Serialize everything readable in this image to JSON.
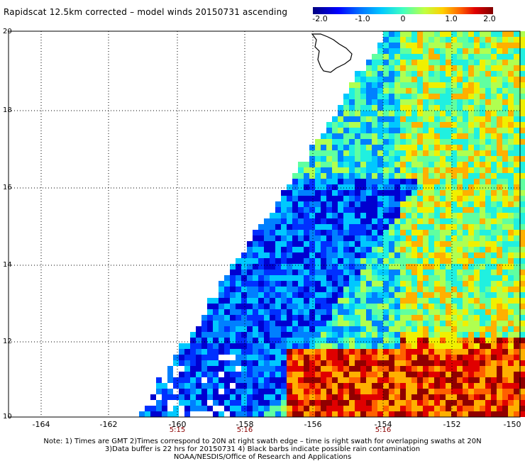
{
  "title": "Rapidscat 12.5km corrected – model winds 20150731 ascending",
  "colorbar": {
    "ticks": [
      "-2.0",
      "-1.0",
      "0",
      "1.0",
      "2.0"
    ],
    "colors": [
      "#000080",
      "#0000ff",
      "#00c8ff",
      "#40ffc0",
      "#ffd000",
      "#ff6000",
      "#800000"
    ]
  },
  "axes": {
    "lat_labels": [
      "20",
      "18",
      "16",
      "14",
      "12",
      "10"
    ],
    "lon_labels": [
      "-164",
      "-162",
      "-160",
      "-158",
      "-156",
      "-154",
      "-152",
      "-150"
    ],
    "time_labels": [
      "5:15",
      "5:16",
      "5:16"
    ]
  },
  "notes": [
    "Note: 1) Times are GMT 2)Times correspond to 20N at right swath edge – time is right swath for overlapping swaths at 20N",
    "3)Data buffer is 22 hrs for 20150731 4) Black barbs indicate possible rain contamination",
    "NOAA/NESDIS/Office of Research and Applications"
  ]
}
